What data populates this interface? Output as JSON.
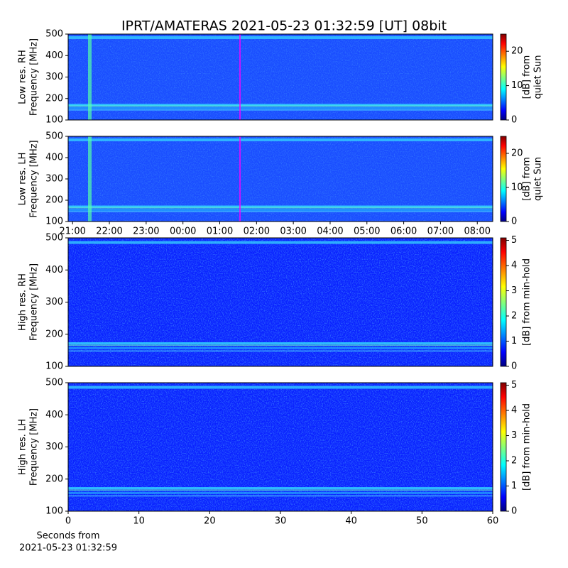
{
  "chart_data": [
    {
      "type": "heatmap",
      "title": "IPRT/AMATERAS 2021-05-23 01:32:59 [UT]   08bit",
      "ylabel": [
        "Low res. RH",
        "Frequency [MHz]"
      ],
      "ylim": [
        100,
        500
      ],
      "yticks": [
        100,
        200,
        300,
        400,
        500
      ],
      "xlim": [
        20.88,
        32.42
      ],
      "marker_x": 25.55,
      "marker_color": "#ff00ff",
      "colorbar": {
        "label": [
          "[dB] from",
          "quiet Sun"
        ],
        "lim": [
          0,
          25
        ],
        "ticks": [
          0,
          10,
          20
        ]
      }
    },
    {
      "type": "heatmap",
      "ylabel": [
        "Low res. LH",
        "Frequency [MHz]"
      ],
      "ylim": [
        100,
        500
      ],
      "yticks": [
        100,
        200,
        300,
        400,
        500
      ],
      "xlim": [
        20.88,
        32.42
      ],
      "marker_x": 25.55,
      "marker_color": "#ff00ff",
      "xticks": [
        {
          "value": 21,
          "label": "21:00"
        },
        {
          "value": 22,
          "label": "22:00"
        },
        {
          "value": 23,
          "label": "23:00"
        },
        {
          "value": 24,
          "label": "00:00"
        },
        {
          "value": 25,
          "label": "01:00"
        },
        {
          "value": 26,
          "label": "02:00"
        },
        {
          "value": 27,
          "label": "03:00"
        },
        {
          "value": 28,
          "label": "04:00"
        },
        {
          "value": 29,
          "label": "05:00"
        },
        {
          "value": 30,
          "label": "06:00"
        },
        {
          "value": 31,
          "label": "07:00"
        },
        {
          "value": 32,
          "label": "08:00"
        }
      ],
      "colorbar": {
        "label": [
          "[dB] from",
          "quiet Sun"
        ],
        "lim": [
          0,
          25
        ],
        "ticks": [
          0,
          10,
          20
        ]
      }
    },
    {
      "type": "heatmap",
      "ylabel": [
        "High res. RH",
        "Frequency [MHz]"
      ],
      "ylim": [
        100,
        500
      ],
      "yticks": [
        100,
        200,
        300,
        400,
        500
      ],
      "xlim": [
        0,
        60
      ],
      "colorbar": {
        "label": [
          "[dB] from min-hold"
        ],
        "lim": [
          0,
          5.1
        ],
        "ticks": [
          0,
          1,
          2,
          3,
          4,
          5
        ]
      }
    },
    {
      "type": "heatmap",
      "ylabel": [
        "High res. LH",
        "Frequency [MHz]"
      ],
      "ylim": [
        100,
        500
      ],
      "yticks": [
        100,
        200,
        300,
        400,
        500
      ],
      "xlim": [
        0,
        60
      ],
      "xticks": [
        0,
        10,
        20,
        30,
        40,
        50,
        60
      ],
      "xlabel": [
        "Seconds from",
        "2021-05-23 01:32:59"
      ],
      "colorbar": {
        "label": [
          "[dB] from min-hold"
        ],
        "lim": [
          0,
          5.1
        ],
        "ticks": [
          0,
          1,
          2,
          3,
          4,
          5
        ]
      }
    }
  ]
}
